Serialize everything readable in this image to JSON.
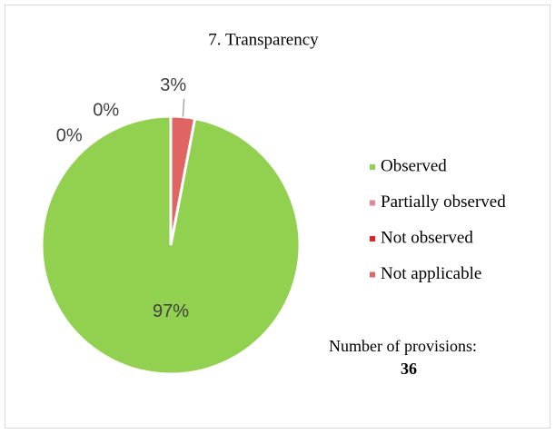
{
  "chart_data": {
    "type": "pie",
    "title": "7. Transparency",
    "categories": [
      "Observed",
      "Partially observed",
      "Not observed",
      "Not applicable"
    ],
    "values": [
      97,
      0,
      0,
      3
    ],
    "value_labels": [
      "97%",
      "0%",
      "0%",
      "3%"
    ],
    "colors": [
      "#92d050",
      "#e6849a",
      "#e02424",
      "#e06464"
    ],
    "legend": "right",
    "annotation": "Number of provisions:",
    "annotation_value": "36"
  }
}
